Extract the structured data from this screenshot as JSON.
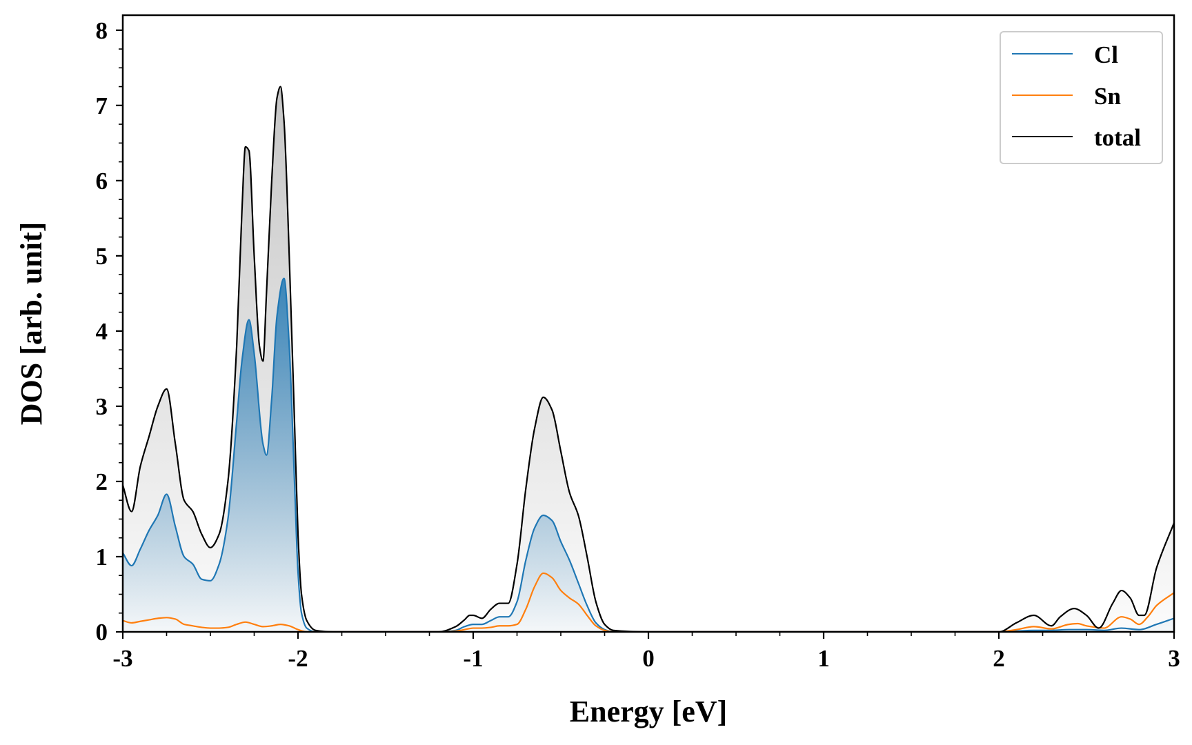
{
  "chart_data": {
    "type": "line",
    "title": "",
    "xlabel": "Energy [eV]",
    "ylabel": "DOS [arb. unit]",
    "xlim": [
      -3,
      3
    ],
    "ylim": [
      0,
      8.2
    ],
    "xticks": [
      -3,
      -2,
      -1,
      0,
      1,
      2,
      3
    ],
    "xtick_labels": [
      "-3",
      "-2",
      "-1",
      "0",
      "1",
      "2",
      "3"
    ],
    "yticks": [
      0,
      1,
      2,
      3,
      4,
      5,
      6,
      7,
      8
    ],
    "ytick_labels": [
      "0",
      "1",
      "2",
      "3",
      "4",
      "5",
      "6",
      "7",
      "8"
    ],
    "grid": false,
    "legend_position": "top-right",
    "series": [
      {
        "name": "Cl",
        "color": "#1f77b4",
        "fill": "blue-gradient",
        "x": [
          -3.0,
          -2.95,
          -2.9,
          -2.85,
          -2.8,
          -2.75,
          -2.7,
          -2.65,
          -2.6,
          -2.55,
          -2.5,
          -2.45,
          -2.4,
          -2.35,
          -2.32,
          -2.28,
          -2.25,
          -2.2,
          -2.18,
          -2.15,
          -2.12,
          -2.08,
          -2.05,
          -2.02,
          -2.0,
          -1.98,
          -1.95,
          -1.9,
          -1.8,
          -1.5,
          -1.2,
          -1.1,
          -1.05,
          -1.0,
          -0.95,
          -0.9,
          -0.85,
          -0.8,
          -0.75,
          -0.7,
          -0.65,
          -0.6,
          -0.55,
          -0.5,
          -0.45,
          -0.4,
          -0.35,
          -0.3,
          -0.25,
          -0.2,
          0.0,
          1.0,
          2.0,
          2.1,
          2.2,
          2.3,
          2.4,
          2.5,
          2.6,
          2.7,
          2.8,
          2.9,
          3.0
        ],
        "y": [
          1.05,
          0.88,
          1.1,
          1.35,
          1.55,
          1.83,
          1.4,
          1.0,
          0.9,
          0.7,
          0.68,
          0.9,
          1.5,
          2.8,
          3.6,
          4.15,
          3.7,
          2.5,
          2.35,
          3.1,
          4.2,
          4.7,
          3.8,
          2.0,
          0.8,
          0.25,
          0.05,
          0.0,
          0.0,
          0.0,
          0.0,
          0.02,
          0.07,
          0.1,
          0.1,
          0.15,
          0.2,
          0.2,
          0.4,
          0.95,
          1.38,
          1.55,
          1.48,
          1.2,
          0.95,
          0.65,
          0.35,
          0.12,
          0.03,
          0.0,
          0.0,
          0.0,
          0.0,
          0.01,
          0.02,
          0.02,
          0.03,
          0.03,
          0.02,
          0.05,
          0.03,
          0.1,
          0.18
        ]
      },
      {
        "name": "Sn",
        "color": "#ff7f0e",
        "x": [
          -3.0,
          -2.95,
          -2.9,
          -2.85,
          -2.8,
          -2.75,
          -2.7,
          -2.65,
          -2.6,
          -2.55,
          -2.5,
          -2.45,
          -2.4,
          -2.35,
          -2.3,
          -2.25,
          -2.2,
          -2.15,
          -2.1,
          -2.05,
          -2.0,
          -1.95,
          -1.9,
          -1.5,
          -1.2,
          -1.1,
          -1.05,
          -1.0,
          -0.95,
          -0.9,
          -0.85,
          -0.8,
          -0.75,
          -0.7,
          -0.65,
          -0.6,
          -0.55,
          -0.5,
          -0.45,
          -0.4,
          -0.35,
          -0.3,
          -0.25,
          -0.2,
          0.0,
          1.0,
          2.0,
          2.1,
          2.2,
          2.3,
          2.4,
          2.45,
          2.5,
          2.6,
          2.7,
          2.75,
          2.8,
          2.85,
          2.9,
          3.0
        ],
        "y": [
          0.15,
          0.12,
          0.14,
          0.16,
          0.18,
          0.19,
          0.17,
          0.1,
          0.08,
          0.06,
          0.05,
          0.05,
          0.06,
          0.1,
          0.13,
          0.1,
          0.07,
          0.08,
          0.1,
          0.08,
          0.03,
          0.0,
          0.0,
          0.0,
          0.0,
          0.01,
          0.03,
          0.05,
          0.05,
          0.06,
          0.08,
          0.08,
          0.1,
          0.3,
          0.6,
          0.78,
          0.72,
          0.55,
          0.45,
          0.37,
          0.22,
          0.08,
          0.02,
          0.0,
          0.0,
          0.0,
          0.0,
          0.03,
          0.07,
          0.04,
          0.1,
          0.11,
          0.08,
          0.05,
          0.2,
          0.17,
          0.1,
          0.2,
          0.35,
          0.52
        ]
      },
      {
        "name": "total",
        "color": "#000000",
        "fill": "gray-gradient",
        "x": [
          -3.0,
          -2.95,
          -2.9,
          -2.85,
          -2.8,
          -2.75,
          -2.7,
          -2.65,
          -2.6,
          -2.55,
          -2.5,
          -2.45,
          -2.4,
          -2.35,
          -2.32,
          -2.3,
          -2.28,
          -2.25,
          -2.22,
          -2.2,
          -2.18,
          -2.15,
          -2.12,
          -2.1,
          -2.08,
          -2.05,
          -2.02,
          -2.0,
          -1.98,
          -1.95,
          -1.9,
          -1.8,
          -1.5,
          -1.2,
          -1.1,
          -1.05,
          -1.02,
          -1.0,
          -0.95,
          -0.9,
          -0.85,
          -0.8,
          -0.75,
          -0.7,
          -0.65,
          -0.6,
          -0.55,
          -0.5,
          -0.45,
          -0.4,
          -0.35,
          -0.3,
          -0.25,
          -0.2,
          0.0,
          1.0,
          2.0,
          2.1,
          2.2,
          2.3,
          2.35,
          2.43,
          2.5,
          2.57,
          2.65,
          2.7,
          2.75,
          2.8,
          2.83,
          2.9,
          3.0
        ],
        "y": [
          1.95,
          1.6,
          2.2,
          2.6,
          3.0,
          3.23,
          2.5,
          1.75,
          1.6,
          1.3,
          1.12,
          1.3,
          2.0,
          3.8,
          5.6,
          6.45,
          6.4,
          5.0,
          3.8,
          3.6,
          4.5,
          6.0,
          7.1,
          7.25,
          6.8,
          5.0,
          2.8,
          1.3,
          0.5,
          0.15,
          0.02,
          0.0,
          0.0,
          0.0,
          0.07,
          0.16,
          0.22,
          0.22,
          0.18,
          0.3,
          0.38,
          0.38,
          0.9,
          1.9,
          2.7,
          3.12,
          2.95,
          2.4,
          1.85,
          1.55,
          1.0,
          0.4,
          0.1,
          0.02,
          0.0,
          0.0,
          0.0,
          0.12,
          0.22,
          0.08,
          0.2,
          0.31,
          0.22,
          0.05,
          0.38,
          0.55,
          0.45,
          0.22,
          0.22,
          0.85,
          1.45
        ]
      }
    ]
  }
}
